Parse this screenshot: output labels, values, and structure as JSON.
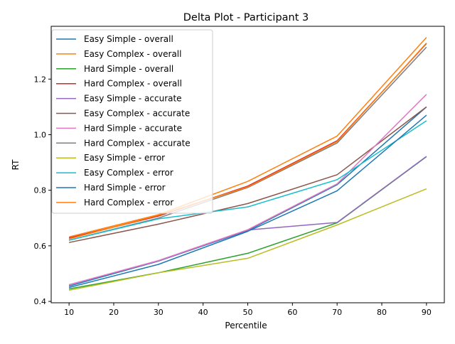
{
  "chart_data": {
    "type": "line",
    "title": "Delta Plot - Participant 3",
    "xlabel": "Percentile",
    "ylabel": "RT",
    "x": [
      10,
      30,
      50,
      70,
      90
    ],
    "xlim": [
      6,
      94
    ],
    "ylim": [
      0.395,
      1.39
    ],
    "xticks": [
      10,
      20,
      30,
      40,
      50,
      60,
      70,
      80,
      90
    ],
    "yticks": [
      0.4,
      0.6,
      0.8,
      1.0,
      1.2
    ],
    "ytick_labels": [
      "0.4",
      "0.6",
      "0.8",
      "1.0",
      "1.2"
    ],
    "grid": false,
    "legend_position": "upper-left",
    "series": [
      {
        "name": "Easy Simple - overall",
        "color": "#1f77b4",
        "values": [
          0.455,
          0.545,
          0.655,
          0.82,
          1.1
        ]
      },
      {
        "name": "Easy Complex - overall",
        "color": "#ff7f0e",
        "values": [
          0.632,
          0.712,
          0.832,
          0.995,
          1.35
        ]
      },
      {
        "name": "Hard Simple - overall",
        "color": "#2ca02c",
        "values": [
          0.445,
          0.503,
          0.573,
          0.683,
          0.921
        ]
      },
      {
        "name": "Hard Complex - overall",
        "color": "#d62728",
        "values": [
          0.628,
          0.707,
          0.815,
          0.978,
          1.328
        ]
      },
      {
        "name": "Easy Simple - accurate",
        "color": "#9467bd",
        "values": [
          0.46,
          0.546,
          0.657,
          0.684,
          0.922
        ]
      },
      {
        "name": "Easy Complex - accurate",
        "color": "#8c564b",
        "values": [
          0.612,
          0.678,
          0.752,
          0.856,
          1.1
        ]
      },
      {
        "name": "Hard Simple - accurate",
        "color": "#e377c2",
        "values": [
          0.46,
          0.547,
          0.658,
          0.823,
          1.145
        ]
      },
      {
        "name": "Hard Complex - accurate",
        "color": "#7f7f7f",
        "values": [
          0.62,
          0.7,
          0.81,
          0.97,
          1.315
        ]
      },
      {
        "name": "Easy Simple - error",
        "color": "#bcbd22",
        "values": [
          0.44,
          0.503,
          0.555,
          0.675,
          0.805
        ]
      },
      {
        "name": "Easy Complex - error",
        "color": "#17becf",
        "values": [
          0.62,
          0.697,
          0.74,
          0.838,
          1.05
        ]
      },
      {
        "name": "Hard Simple - error",
        "color": "#1f77b4",
        "values": [
          0.45,
          0.533,
          0.652,
          0.798,
          1.07
        ]
      },
      {
        "name": "Hard Complex - error",
        "color": "#ff7f0e",
        "values": [
          0.625,
          0.71,
          0.812,
          0.975,
          1.33
        ]
      }
    ]
  }
}
